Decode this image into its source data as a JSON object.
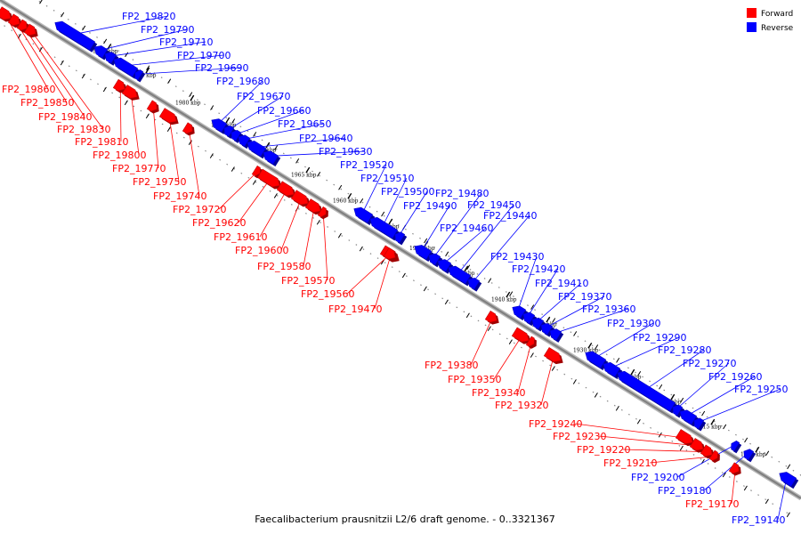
{
  "caption": "Faecalibacterium prausnitzii L2/6 draft genome. - 0..3321367",
  "legend": [
    {
      "label": "Forward",
      "color": "#ff0000"
    },
    {
      "label": "Reverse",
      "color": "#0000ff"
    }
  ],
  "colors": {
    "forward": "#ff0000",
    "reverse": "#0000ff",
    "backbone": "#808080",
    "tick": "#000000"
  },
  "scale_labels": [
    "1990 kbp",
    "1985 kbp",
    "1980 kbp",
    "1975 kbp",
    "1970 kbp",
    "1965 kbp",
    "1960 kbp",
    "1955 kbp",
    "1950 kbp",
    "1945 kbp",
    "1940 kbp",
    "1935 kbp",
    "1930 kbp",
    "1925 kbp",
    "1920 kbp",
    "1915 kbp",
    "1910 kbp"
  ],
  "genes": [
    {
      "name": "FP2_19860",
      "strand": "forward"
    },
    {
      "name": "FP2_19850",
      "strand": "forward"
    },
    {
      "name": "FP2_19840",
      "strand": "forward"
    },
    {
      "name": "FP2_19830",
      "strand": "forward"
    },
    {
      "name": "FP2_19820",
      "strand": "reverse"
    },
    {
      "name": "FP2_19810",
      "strand": "forward"
    },
    {
      "name": "FP2_19800",
      "strand": "forward"
    },
    {
      "name": "FP2_19790",
      "strand": "reverse"
    },
    {
      "name": "FP2_19770",
      "strand": "forward"
    },
    {
      "name": "FP2_19750",
      "strand": "forward"
    },
    {
      "name": "FP2_19740",
      "strand": "forward"
    },
    {
      "name": "FP2_19720",
      "strand": "forward"
    },
    {
      "name": "FP2_19710",
      "strand": "reverse"
    },
    {
      "name": "FP2_19700",
      "strand": "reverse"
    },
    {
      "name": "FP2_19690",
      "strand": "reverse"
    },
    {
      "name": "FP2_19680",
      "strand": "reverse"
    },
    {
      "name": "FP2_19670",
      "strand": "reverse"
    },
    {
      "name": "FP2_19660",
      "strand": "reverse"
    },
    {
      "name": "FP2_19650",
      "strand": "reverse"
    },
    {
      "name": "FP2_19640",
      "strand": "reverse"
    },
    {
      "name": "FP2_19630",
      "strand": "reverse"
    },
    {
      "name": "FP2_19620",
      "strand": "forward"
    },
    {
      "name": "FP2_19610",
      "strand": "forward"
    },
    {
      "name": "FP2_19600",
      "strand": "forward"
    },
    {
      "name": "FP2_19580",
      "strand": "forward"
    },
    {
      "name": "FP2_19570",
      "strand": "forward"
    },
    {
      "name": "FP2_19560",
      "strand": "forward"
    },
    {
      "name": "FP2_19520",
      "strand": "reverse"
    },
    {
      "name": "FP2_19510",
      "strand": "reverse"
    },
    {
      "name": "FP2_19500",
      "strand": "reverse"
    },
    {
      "name": "FP2_19490",
      "strand": "reverse"
    },
    {
      "name": "FP2_19480",
      "strand": "reverse"
    },
    {
      "name": "FP2_19470",
      "strand": "forward"
    },
    {
      "name": "FP2_19460",
      "strand": "reverse"
    },
    {
      "name": "FP2_19450",
      "strand": "reverse"
    },
    {
      "name": "FP2_19440",
      "strand": "reverse"
    },
    {
      "name": "FP2_19430",
      "strand": "reverse"
    },
    {
      "name": "FP2_19420",
      "strand": "reverse"
    },
    {
      "name": "FP2_19410",
      "strand": "reverse"
    },
    {
      "name": "FP2_19380",
      "strand": "forward"
    },
    {
      "name": "FP2_19370",
      "strand": "reverse"
    },
    {
      "name": "FP2_19360",
      "strand": "reverse"
    },
    {
      "name": "FP2_19350",
      "strand": "forward"
    },
    {
      "name": "FP2_19340",
      "strand": "forward"
    },
    {
      "name": "FP2_19320",
      "strand": "forward"
    },
    {
      "name": "FP2_19300",
      "strand": "reverse"
    },
    {
      "name": "FP2_19290",
      "strand": "reverse"
    },
    {
      "name": "FP2_19280",
      "strand": "reverse"
    },
    {
      "name": "FP2_19270",
      "strand": "reverse"
    },
    {
      "name": "FP2_19260",
      "strand": "reverse"
    },
    {
      "name": "FP2_19250",
      "strand": "reverse"
    },
    {
      "name": "FP2_19240",
      "strand": "forward"
    },
    {
      "name": "FP2_19230",
      "strand": "forward"
    },
    {
      "name": "FP2_19220",
      "strand": "forward"
    },
    {
      "name": "FP2_19210",
      "strand": "forward"
    },
    {
      "name": "FP2_19200",
      "strand": "reverse"
    },
    {
      "name": "FP2_19180",
      "strand": "reverse"
    },
    {
      "name": "FP2_19170",
      "strand": "forward"
    },
    {
      "name": "FP2_19140",
      "strand": "reverse"
    }
  ]
}
